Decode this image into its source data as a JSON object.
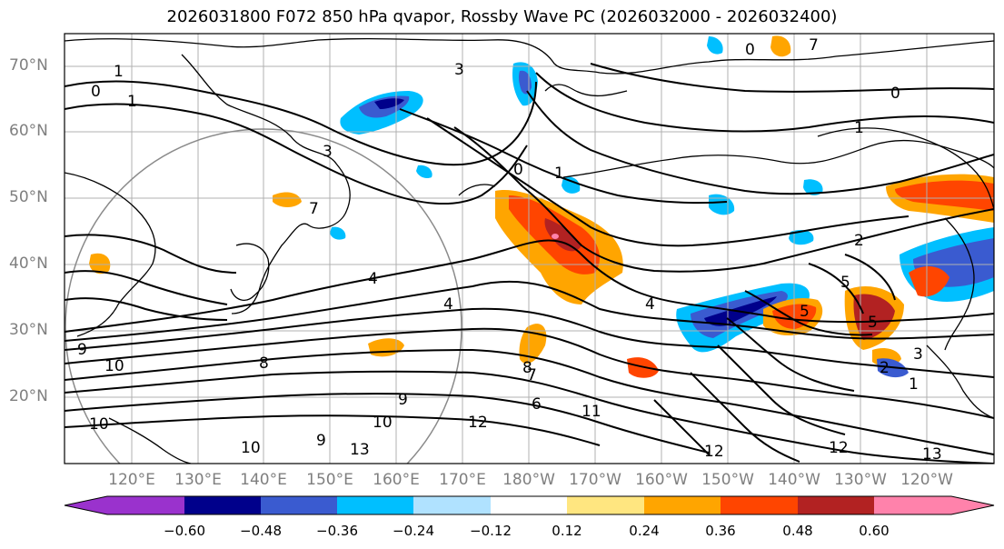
{
  "title": "2026031800 F072 850 hPa qvapor, Rossby Wave PC (2026032000 - 2026032400)",
  "lat_labels": [
    "70°N",
    "60°N",
    "50°N",
    "40°N",
    "30°N",
    "20°N"
  ],
  "lon_labels": [
    "120°E",
    "130°E",
    "140°E",
    "150°E",
    "160°E",
    "170°E",
    "180°W",
    "170°W",
    "160°W",
    "150°W",
    "140°W",
    "130°W",
    "120°W"
  ],
  "colorbar": {
    "ticks": [
      "−0.60",
      "−0.48",
      "−0.36",
      "−0.24",
      "−0.12",
      "0.12",
      "0.24",
      "0.36",
      "0.48",
      "0.60"
    ],
    "colors": [
      "#9a32cd",
      "#00008b",
      "#3a5bd0",
      "#00bfff",
      "#b0e2ff",
      "#ffffff",
      "#ffe680",
      "#ffa500",
      "#ff4500",
      "#b22222",
      "#ff82ab"
    ]
  },
  "contour_labels": [
    "1",
    "0",
    "1",
    "3",
    "0",
    "1",
    "0",
    "1",
    "3",
    "4",
    "4",
    "5",
    "7",
    "9",
    "10",
    "8",
    "9",
    "10",
    "10",
    "9",
    "13",
    "12",
    "11",
    "12",
    "6",
    "8",
    "0",
    "2",
    "5",
    "3",
    "2",
    "1",
    "12",
    "13",
    "10",
    "7",
    "4",
    "5",
    "7"
  ],
  "map_colors": {
    "purple": "#9a32cd",
    "navy": "#00008b",
    "blue": "#3a5bd0",
    "cyan": "#00bfff",
    "lightblue": "#b0e2ff",
    "yellow": "#ffe680",
    "orange": "#ffa500",
    "redorange": "#ff4500",
    "darkred": "#b22222",
    "pink": "#ff82ab",
    "grid": "#b0b0b0",
    "contour": "#000000",
    "axis_label": "#7f7f7f"
  }
}
